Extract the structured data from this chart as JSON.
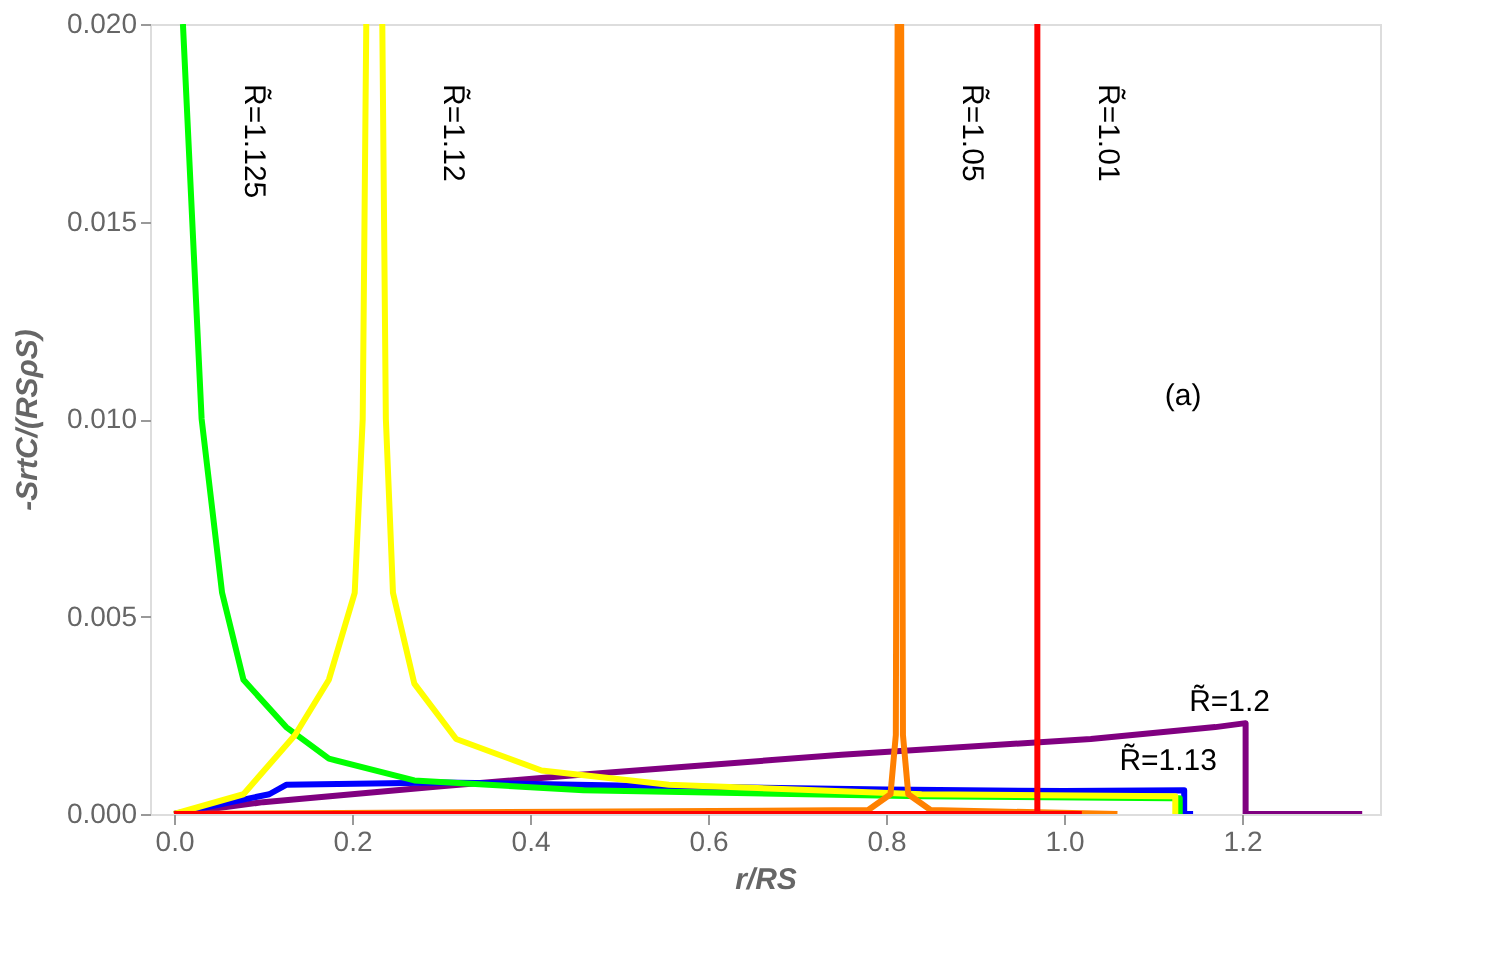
{
  "chart_data": {
    "type": "line",
    "xlabel": "r/RS",
    "ylabel": "-SrtC/(RSρS)",
    "xlim": [
      -0.027,
      1.355
    ],
    "ylim": [
      0,
      0.02
    ],
    "xticks": [
      {
        "value": 0,
        "label": "0.0"
      },
      0.2,
      0.4,
      0.6,
      0.8,
      {
        "value": 1,
        "label": "1.0"
      },
      1.2
    ],
    "yticks": [
      {
        "value": 0,
        "label": "0.000"
      },
      0.005,
      {
        "value": 0.01,
        "label": "0.010"
      },
      0.015,
      {
        "value": 0.02,
        "label": "0.020"
      }
    ],
    "grid": false,
    "line_style": "solid",
    "marker": "none",
    "series": [
      {
        "name": "R̃=1.2",
        "color": "#800080",
        "x": [
          0,
          0.1,
          0.3,
          0.46,
          0.75,
          1.03,
          1.17,
          1.204,
          1.204,
          1.335
        ],
        "values": [
          0,
          0.0003,
          0.0007,
          0.001,
          0.0015,
          0.0019,
          0.0022,
          0.0023,
          0,
          0
        ]
      },
      {
        "name": "R̃=1.13",
        "color": "#0000ff",
        "x": [
          0,
          0.107,
          0.126,
          0.3,
          0.5,
          0.8,
          1.0,
          1.135,
          1.135,
          1.145
        ],
        "values": [
          0,
          0.0005,
          0.00074,
          0.0008,
          0.00072,
          0.00062,
          0.00058,
          0.0006,
          0,
          0
        ]
      },
      {
        "name": "R̃=1.125",
        "color": "#00ff00",
        "x": [
          0.01,
          0.031,
          0.054,
          0.078,
          0.126,
          0.174,
          0.27,
          0.46,
          0.84,
          1.12,
          1.13,
          1.13
        ],
        "values": [
          0.02,
          0.01,
          0.0056,
          0.0034,
          0.0022,
          0.0014,
          0.00085,
          0.0006,
          0.00045,
          0.0004,
          0.0004,
          0
        ]
      },
      {
        "name": "R̃=1.12",
        "color": "#ffff00",
        "x": [
          0,
          0.078,
          0.136,
          0.174,
          0.203,
          0.212,
          0.216,
          0.225,
          0.234,
          0.238,
          0.246,
          0.27,
          0.317,
          0.413,
          0.556,
          0.84,
          1.12,
          1.125,
          1.125
        ],
        "values": [
          0,
          0.0005,
          0.002,
          0.0034,
          0.0056,
          0.01,
          0.02,
          null,
          0.02,
          0.01,
          0.0056,
          0.0033,
          0.0019,
          0.0011,
          0.00074,
          0.0005,
          0.00045,
          0.00045,
          0
        ]
      },
      {
        "name": "R̃=1.05",
        "color": "#ff8000",
        "x": [
          0,
          0.78,
          0.805,
          0.811,
          0.813,
          0.815,
          0.817,
          0.819,
          0.825,
          0.85,
          1.06
        ],
        "values": [
          0,
          0.0001,
          0.0005,
          0.002,
          0.02,
          null,
          0.02,
          0.002,
          0.0005,
          0.0001,
          0
        ]
      },
      {
        "name": "R̃=1.01",
        "color": "#ff0000",
        "x": [
          0,
          0.97,
          0.97,
          0.97,
          1.02
        ],
        "values": [
          0,
          0,
          0.02,
          0,
          0
        ]
      }
    ],
    "annotations": [
      "(a)"
    ]
  }
}
